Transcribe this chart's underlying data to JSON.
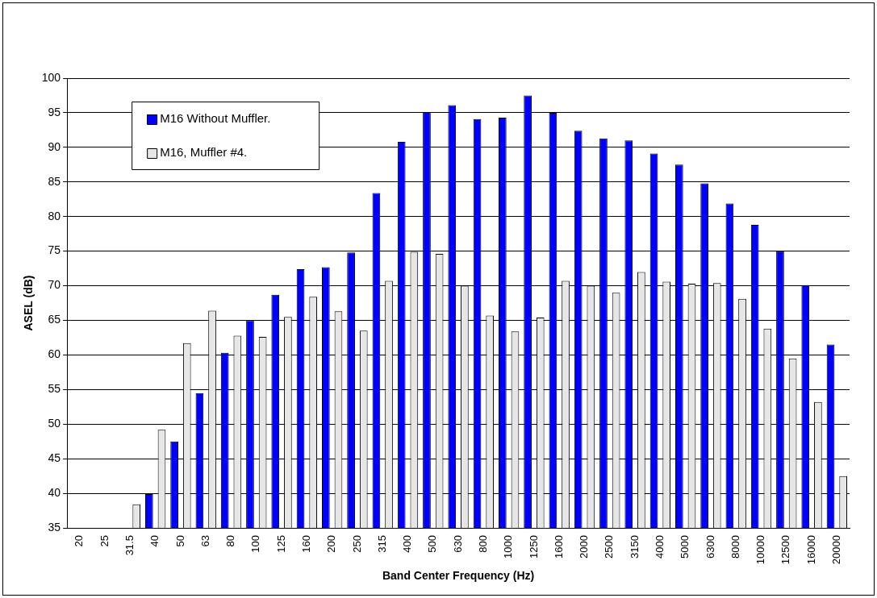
{
  "chart_data": {
    "type": "bar",
    "xlabel": "Band Center Frequency (Hz)",
    "ylabel": "ASEL (dB)",
    "categories": [
      "20",
      "25",
      "31.5",
      "40",
      "50",
      "63",
      "80",
      "100",
      "125",
      "160",
      "200",
      "250",
      "315",
      "400",
      "500",
      "630",
      "800",
      "1000",
      "1250",
      "1600",
      "2000",
      "2500",
      "3150",
      "4000",
      "5000",
      "6300",
      "8000",
      "10000",
      "12500",
      "16000",
      "20000"
    ],
    "series": [
      {
        "name": "M16 Without Muffler.",
        "color": "#0000ff",
        "values": [
          null,
          null,
          null,
          39.9,
          47.5,
          54.5,
          60.3,
          65.0,
          68.7,
          72.4,
          72.7,
          74.8,
          83.4,
          90.8,
          95.1,
          96.1,
          94.1,
          94.3,
          97.5,
          95.0,
          92.4,
          91.3,
          91.0,
          89.1,
          87.5,
          84.8,
          81.9,
          78.8,
          75.0,
          70.1,
          61.5
        ]
      },
      {
        "name": "M16, Muffler #4.",
        "color": "#e6e6e6",
        "values": [
          null,
          null,
          38.4,
          49.2,
          61.7,
          66.4,
          62.8,
          62.6,
          65.5,
          68.4,
          66.3,
          63.5,
          70.7,
          74.9,
          74.6,
          70.0,
          65.7,
          63.4,
          65.4,
          70.7,
          70.0,
          69.0,
          72.0,
          70.6,
          70.3,
          70.4,
          68.1,
          63.8,
          59.5,
          53.2,
          42.5
        ]
      }
    ],
    "ylim": [
      35,
      100
    ],
    "yticks": [
      35,
      40,
      45,
      50,
      55,
      60,
      65,
      70,
      75,
      80,
      85,
      90,
      95,
      100
    ],
    "grid": "y",
    "legend": "top left"
  }
}
